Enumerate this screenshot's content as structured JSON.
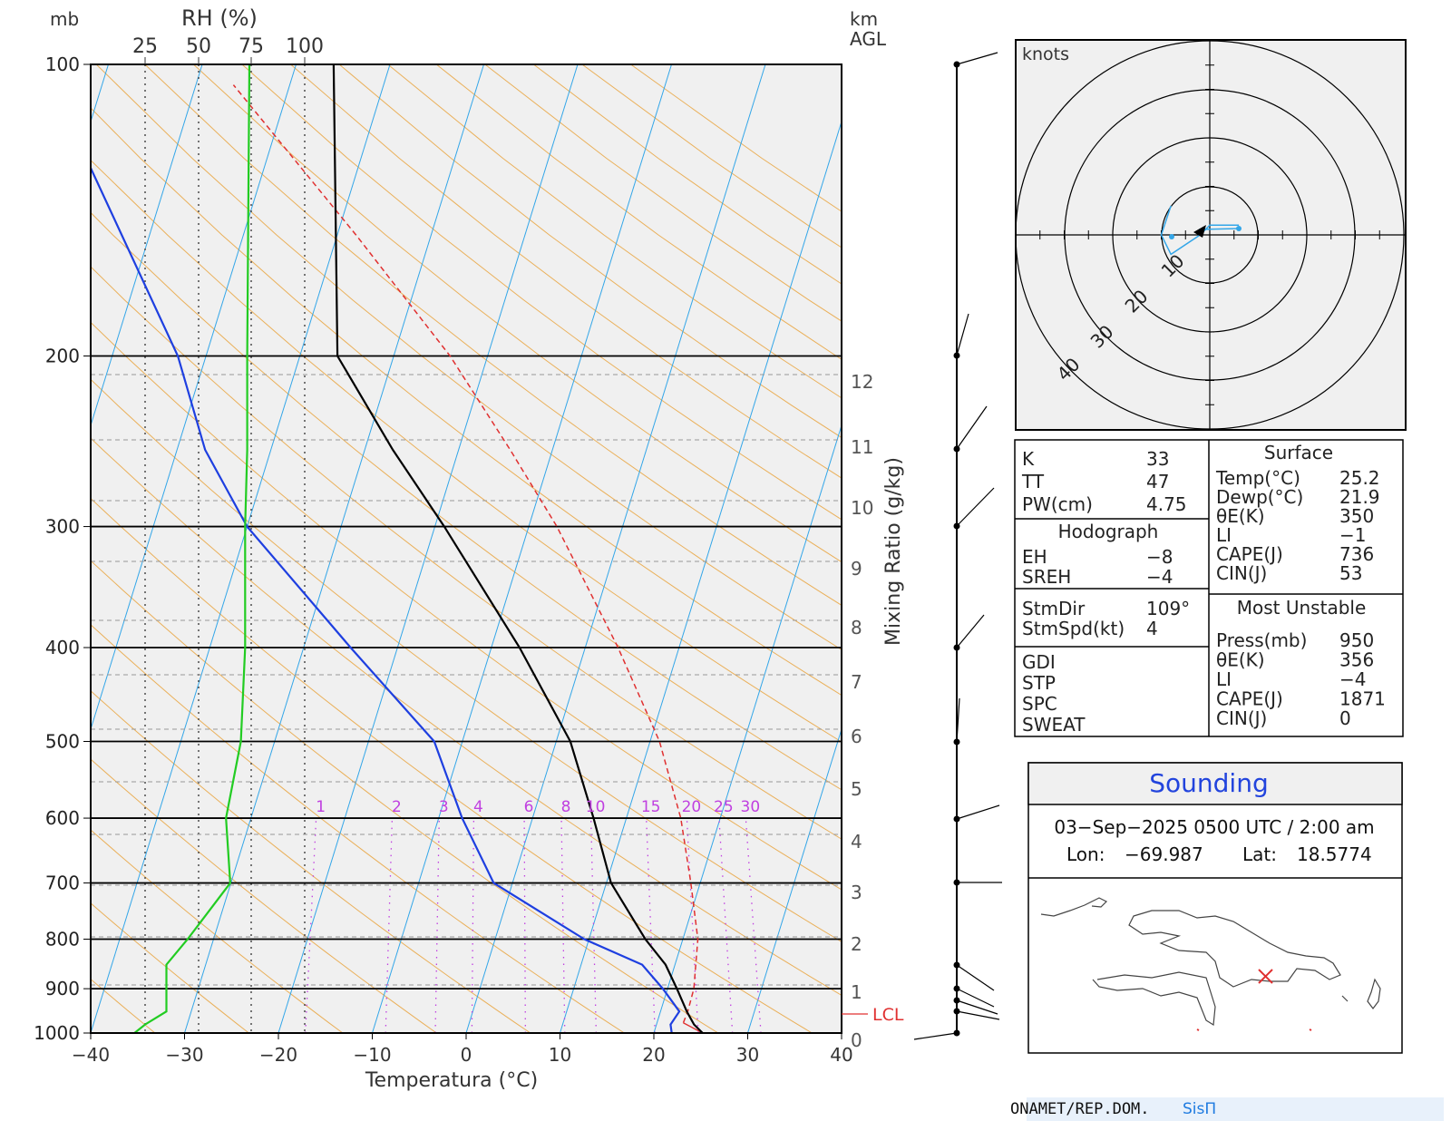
{
  "skewt": {
    "pressure_unit": "mb",
    "rh_title": "RH (%)",
    "rh_ticks": [
      "25",
      "50",
      "75",
      "100"
    ],
    "height_unit": "km",
    "height_ref": "AGL",
    "pressure_labels": [
      "100",
      "200",
      "300",
      "400",
      "500",
      "600",
      "700",
      "800",
      "900",
      "1000"
    ],
    "temp_ticks": [
      "−40",
      "−30",
      "−20",
      "−10",
      "0",
      "10",
      "20",
      "30",
      "40"
    ],
    "xlabel": "Temperatura (°C)",
    "mixing_ratio_label": "Mixing Ratio (g/kg)",
    "km_labels": [
      "12",
      "11",
      "10",
      "9",
      "8",
      "7",
      "6",
      "5",
      "4",
      "3",
      "2",
      "1",
      "0"
    ],
    "mixing_ratio_ticks": [
      "1",
      "2",
      "3",
      "4",
      "6",
      "8",
      "10",
      "15",
      "20",
      "25",
      "30"
    ],
    "lcl_label": "LCL",
    "colors": {
      "temperature": "#000000",
      "dewpoint": "#1e3fe0",
      "rh": "#22cc22",
      "parcel": "#e03030",
      "isotherm": "#33a6e8",
      "dry_adiabat": "#eab05a",
      "mixing_ratio": "#c040e0"
    }
  },
  "chart_data": {
    "type": "skew-t",
    "pressure_levels": [
      1000,
      980,
      950,
      900,
      850,
      800,
      700,
      600,
      500,
      400,
      300,
      250,
      200,
      100
    ],
    "temperature": [
      25.2,
      24.0,
      22.8,
      21.0,
      19.0,
      16.0,
      10.5,
      6.5,
      1.5,
      -7,
      -19,
      -27,
      -36,
      -46
    ],
    "dewpoint": [
      21.9,
      21.5,
      22.0,
      19.5,
      16.5,
      9.5,
      -2.0,
      -7.5,
      -13.0,
      -25.0,
      -40.0,
      -47.0,
      -53.0,
      -77.0
    ],
    "relative_humidity": [
      20,
      25,
      35,
      35,
      35,
      45,
      65,
      63,
      70,
      72,
      72,
      73,
      73,
      74
    ],
    "parcel": [
      [
        976,
        22.8
      ],
      [
        950,
        22.9
      ],
      [
        900,
        22.8
      ],
      [
        800,
        21.6
      ],
      [
        700,
        19.0
      ],
      [
        600,
        15.8
      ],
      [
        500,
        11.0
      ],
      [
        400,
        3.5
      ],
      [
        300,
        -7.0
      ],
      [
        250,
        -14.5
      ],
      [
        200,
        -24.0
      ],
      [
        150,
        -38.0
      ],
      [
        105,
        -56.0
      ]
    ],
    "lcl_pressure": 976,
    "pressure_range": [
      100,
      1000
    ],
    "temp_range": [
      -40,
      40
    ]
  },
  "hodograph": {
    "units_label": "knots",
    "ring_labels": [
      "10",
      "20",
      "30",
      "40"
    ],
    "trace": [
      [
        -4,
        3
      ],
      [
        -5,
        0
      ],
      [
        -4,
        -2
      ],
      [
        -1,
        0
      ],
      [
        0,
        1
      ],
      [
        1,
        1
      ],
      [
        3,
        1
      ]
    ]
  },
  "indices": {
    "rows": [
      {
        "label": "K",
        "value": "33"
      },
      {
        "label": "TT",
        "value": "47"
      },
      {
        "label": "PW(cm)",
        "value": "4.75"
      }
    ],
    "hodograph_title": "Hodograph",
    "hodograph_rows": [
      {
        "label": "EH",
        "value": "−8"
      },
      {
        "label": "SREH",
        "value": "−4"
      }
    ],
    "storm_rows": [
      {
        "label": "StmDir",
        "value": "109°"
      },
      {
        "label": "StmSpd(kt)",
        "value": "4"
      }
    ],
    "other_rows": [
      {
        "label": "GDI",
        "value": ""
      },
      {
        "label": "STP",
        "value": ""
      },
      {
        "label": "SPC",
        "value": ""
      },
      {
        "label": "SWEAT",
        "value": ""
      }
    ]
  },
  "surface": {
    "title": "Surface",
    "rows": [
      {
        "label": "Temp(°C)",
        "value": "25.2"
      },
      {
        "label": "Dewp(°C)",
        "value": "21.9"
      },
      {
        "label": "θE(K)",
        "value": "350"
      },
      {
        "label": "LI",
        "value": "−1"
      },
      {
        "label": "CAPE(J)",
        "value": "736"
      },
      {
        "label": "CIN(J)",
        "value": "53"
      }
    ]
  },
  "most_unstable": {
    "title": "Most Unstable",
    "rows": [
      {
        "label": "Press(mb)",
        "value": "950"
      },
      {
        "label": "θE(K)",
        "value": "356"
      },
      {
        "label": "LI",
        "value": "−4"
      },
      {
        "label": "CAPE(J)",
        "value": "1871"
      },
      {
        "label": "CIN(J)",
        "value": "0"
      }
    ]
  },
  "sounding": {
    "title": "Sounding",
    "datetime": "03−Sep−2025 0500  UTC / 2:00 am",
    "lon_label": "Lon:",
    "lon": "−69.987",
    "lat_label": "Lat:",
    "lat": "18.5774"
  },
  "footer": {
    "org": "ONAMET/REP.DOM.",
    "system": "SisΠ"
  }
}
